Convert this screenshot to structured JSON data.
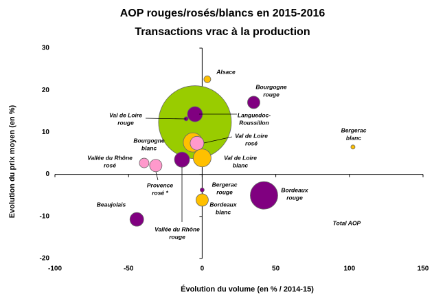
{
  "chart_data": {
    "type": "bubble",
    "title": "AOP rouges/rosés/blancs en 2015-2016",
    "subtitle": "Transactions vrac à la production",
    "xlabel": "Évolution du volume (en % / 2014-15)",
    "ylabel": "Evolution du prix moyen (en %)",
    "xlim": [
      -100,
      150
    ],
    "xticks": [
      -100,
      -50,
      0,
      50,
      100,
      150
    ],
    "ylim": [
      -20,
      30
    ],
    "yticks": [
      -20,
      -10,
      0,
      10,
      20,
      30
    ],
    "labels": [
      [
        "Total AOP"
      ],
      [
        "Alsace"
      ],
      [
        "Bourgogne",
        "rouge"
      ],
      [
        "Val de Loire",
        "rouge"
      ],
      [
        "Languedoc-",
        "Roussillon"
      ],
      [
        "Bergerac",
        "blanc"
      ],
      [
        "Bourgogne",
        "blanc"
      ],
      [
        "Val de Loire",
        "rosé"
      ],
      [
        "Vallée du Rhône",
        "rosé"
      ],
      [
        "Provence",
        "rosé *"
      ],
      [
        "Vallée du Rhône",
        "rouge"
      ],
      [
        "Val de Loire",
        "blanc"
      ],
      [
        "Bergerac",
        "rouge"
      ],
      [
        "Bordeaux",
        "rouge"
      ],
      [
        "Bordeaux",
        "blanc"
      ],
      [
        "Beaujolais"
      ]
    ],
    "x": [
      -4.9,
      3.5,
      35,
      -10.9,
      -4.9,
      102.4,
      -6.3,
      -3.5,
      -39.4,
      -31.5,
      -13.7,
      0,
      0,
      42,
      0,
      -44.4
    ],
    "values": [
      12.4,
      22.6,
      17.1,
      13.2,
      14.3,
      6.5,
      7.6,
      7.4,
      2.7,
      2.1,
      3.5,
      3.9,
      -3.7,
      -5,
      -6.1,
      -10.7
    ],
    "sizes": [
      53,
      5,
      9,
      3,
      11,
      3,
      14,
      10,
      7,
      9,
      11,
      13,
      3,
      20,
      9,
      10
    ],
    "colors": [
      "#99cc00",
      "#ffc000",
      "#800080",
      "#800080",
      "#800080",
      "#ffc000",
      "#ffc000",
      "#ff99cc",
      "#ff99cc",
      "#ff99cc",
      "#800080",
      "#ffc000",
      "#800080",
      "#800080",
      "#ffc000",
      "#800080"
    ]
  }
}
